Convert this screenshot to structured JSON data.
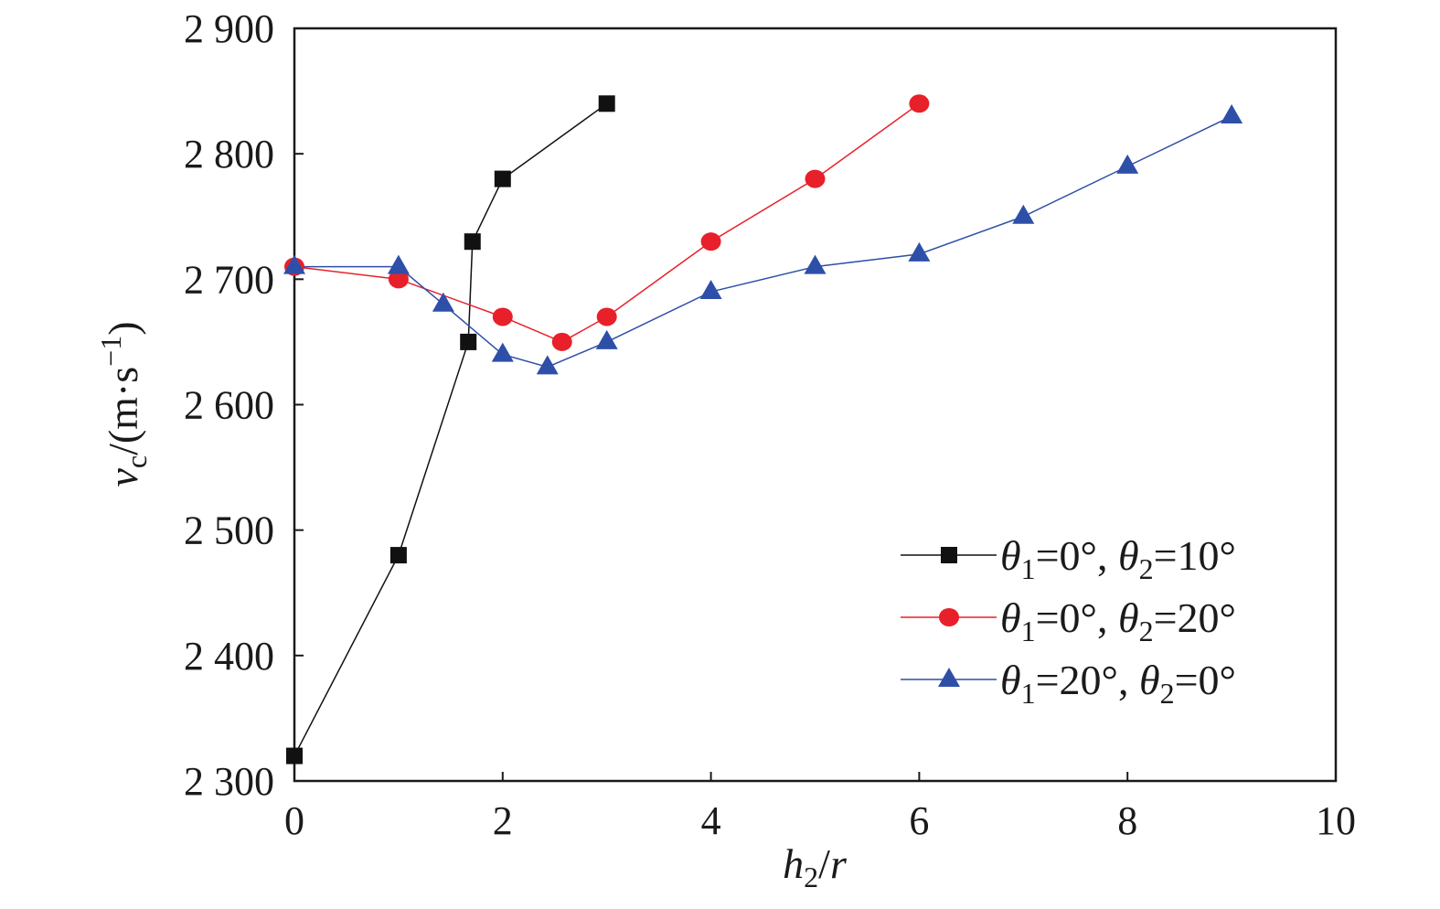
{
  "chart_data": {
    "type": "line",
    "xlabel": {
      "main": "h",
      "sub": "2",
      "rest": "/",
      "tail": "r"
    },
    "ylabel": {
      "main": "v",
      "sub": "c",
      "rest": "/(m·s",
      "sup": "−1",
      "close": ")"
    },
    "xlim": [
      0,
      10
    ],
    "ylim": [
      2300,
      2900
    ],
    "xticks": [
      0,
      2,
      4,
      6,
      8,
      10
    ],
    "xtick_labels": [
      "0",
      "2",
      "4",
      "6",
      "8",
      "10"
    ],
    "yticks": [
      2300,
      2400,
      2500,
      2600,
      2700,
      2800,
      2900
    ],
    "ytick_labels": [
      "2 300",
      "2 400",
      "2 500",
      "2 600",
      "2 700",
      "2 800",
      "2 900"
    ],
    "grid": false,
    "legend_position": "bottom-right",
    "series": [
      {
        "name": "θ1=0°, θ2=10°",
        "legend": {
          "s1": "θ",
          "n1": "1",
          "m1": "=0°, ",
          "s2": "θ",
          "n2": "2",
          "m2": "=10°"
        },
        "marker": "square",
        "color": "#111111",
        "x": [
          0,
          1,
          1.67,
          1.71,
          2,
          3
        ],
        "y": [
          2320,
          2480,
          2650,
          2730,
          2780,
          2840
        ]
      },
      {
        "name": "θ1=0°, θ2=20°",
        "legend": {
          "s1": "θ",
          "n1": "1",
          "m1": "=0°, ",
          "s2": "θ",
          "n2": "2",
          "m2": "=20°"
        },
        "marker": "circle",
        "color": "#e8202a",
        "x": [
          0,
          1,
          2,
          2.57,
          3,
          4,
          5,
          6
        ],
        "y": [
          2710,
          2700,
          2670,
          2650,
          2670,
          2730,
          2780,
          2840
        ]
      },
      {
        "name": "θ1=20°, θ2=0°",
        "legend": {
          "s1": "θ",
          "n1": "1",
          "m1": "=20°, ",
          "s2": "θ",
          "n2": "2",
          "m2": "=0°"
        },
        "marker": "triangle",
        "color": "#2e4fa8",
        "x": [
          0,
          1,
          1.43,
          2,
          2.43,
          3,
          4,
          5,
          6,
          7,
          8,
          9
        ],
        "y": [
          2710,
          2710,
          2680,
          2640,
          2630,
          2650,
          2690,
          2710,
          2720,
          2750,
          2790,
          2830
        ]
      }
    ]
  }
}
